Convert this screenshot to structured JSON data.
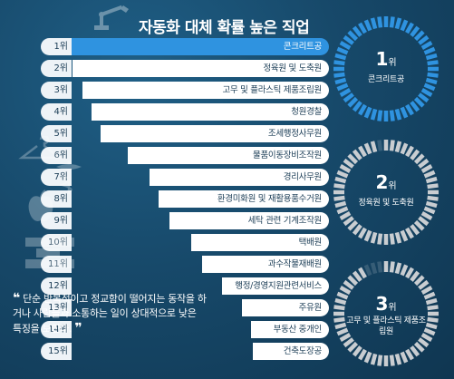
{
  "title": "자동화 대체 확률 높은 직업",
  "rows": [
    {
      "rank": "1위",
      "job": "콘크리트공"
    },
    {
      "rank": "2위",
      "job": "정육원 및 도축원"
    },
    {
      "rank": "3위",
      "job": "고무 및 플라스틱 제품조립원"
    },
    {
      "rank": "4위",
      "job": "청원경찰"
    },
    {
      "rank": "5위",
      "job": "조세행정사무원"
    },
    {
      "rank": "6위",
      "job": "물품이동장비조작원"
    },
    {
      "rank": "7위",
      "job": "경리사무원"
    },
    {
      "rank": "8위",
      "job": "환경미화원 및 재활용품수거원"
    },
    {
      "rank": "9위",
      "job": "세탁 관련 기계조작원"
    },
    {
      "rank": "10위",
      "job": "택배원"
    },
    {
      "rank": "11위",
      "job": "과수작물재배원"
    },
    {
      "rank": "12위",
      "job": "행정/경영지원관련서비스"
    },
    {
      "rank": "13위",
      "job": "주유원"
    },
    {
      "rank": "14위",
      "job": "부동산 중개인"
    },
    {
      "rank": "15위",
      "job": "건축도장공"
    }
  ],
  "quote": {
    "open": "❝",
    "text": "단순 반복적이고 정교함이 떨어지는 동작을 하거나 사람들과 소통하는 일이 상대적으로 낮은 특징을 보인다.",
    "close": "❞"
  },
  "top3": [
    {
      "num": "1",
      "unit": "위",
      "label": "콘크리트공",
      "fill": 1.0
    },
    {
      "num": "2",
      "unit": "위",
      "label": "정육원 및 도축원",
      "fill": 0.97
    },
    {
      "num": "3",
      "unit": "위",
      "label": "고무 및 플라스틱 제품조립원",
      "fill": 0.94
    }
  ],
  "colors": {
    "accent": "#2f93e0",
    "ring_blue": "#2f93e0",
    "ring_grey": "#c9cdd1",
    "bg": "#17496a"
  }
}
